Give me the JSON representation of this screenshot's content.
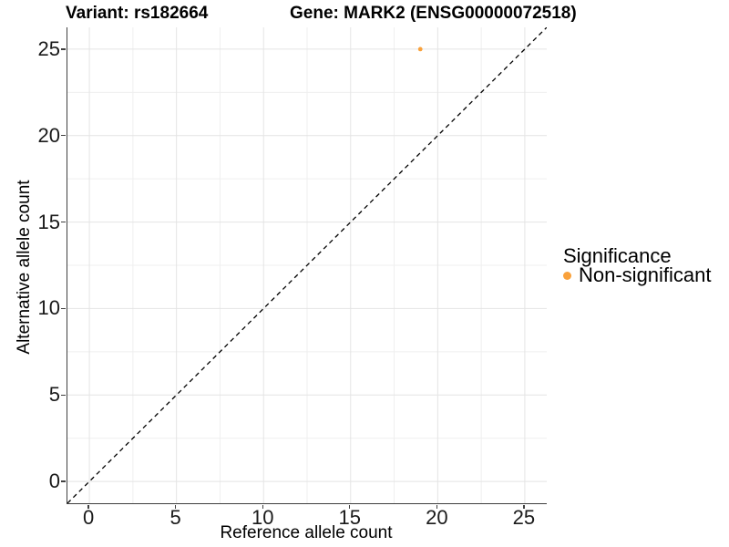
{
  "chart_data": {
    "type": "scatter",
    "titles": [
      "Variant: rs182664",
      "Gene: MARK2 (ENSG00000072518)"
    ],
    "xlabel": "Reference allele count",
    "ylabel": "Alternative allele count",
    "xlim": [
      -1.26,
      26.26
    ],
    "ylim": [
      -1.26,
      26.26
    ],
    "x_ticks": [
      0,
      5,
      10,
      15,
      20,
      25
    ],
    "y_ticks": [
      0,
      5,
      10,
      15,
      20,
      25
    ],
    "minor_ticks": [
      2.5,
      7.5,
      12.5,
      17.5,
      22.5
    ],
    "grid": "major and minor gridlines, light gray on white",
    "series": [
      {
        "name": "Non-significant",
        "color": "#F9A13B",
        "points": [
          [
            19,
            25
          ]
        ]
      }
    ],
    "reference_line": {
      "kind": "identity y=x",
      "style": "dashed",
      "color": "#000000"
    },
    "legend": {
      "title": "Significance",
      "position": "right",
      "entries": [
        {
          "label": "Non-significant",
          "color": "#F9A13B"
        }
      ]
    }
  },
  "colors": {
    "background": "#FFFFFF",
    "grid_major": "#E4E4E4",
    "grid_minor": "#EFEFEF",
    "axis_line": "#404040",
    "tick_mark": "#404040",
    "tick_text": "#1A1A1A",
    "title_text": "#000000",
    "point": "#F9A13B"
  }
}
